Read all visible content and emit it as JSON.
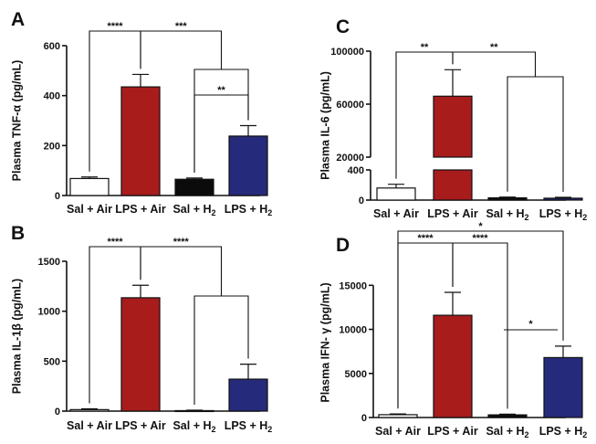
{
  "colors": {
    "Sal + Air": "#ffffff",
    "LPS + Air": "#a81c1c",
    "Sal + H2": "#0b0b0b",
    "LPS + H2": "#262a7a"
  },
  "chart_data": [
    {
      "type": "bar",
      "panel": "A",
      "ylabel": "Plasma TNF-α (pg/mL)",
      "categories": [
        "Sal + Air",
        "LPS + Air",
        "Sal + H2",
        "LPS + H2"
      ],
      "values": [
        68,
        435,
        65,
        238
      ],
      "errors": [
        6,
        50,
        5,
        42
      ],
      "ylim": [
        0,
        600
      ],
      "yticks": [
        "0",
        "200",
        "400",
        "600"
      ],
      "significance": [
        {
          "label": "****",
          "from": "Sal + Air",
          "to": "LPS + Air"
        },
        {
          "label": "***",
          "from": "LPS + Air",
          "to": "Sal + H2 / LPS + H2"
        },
        {
          "label": "**",
          "from": "Sal + H2",
          "to": "LPS + H2"
        }
      ]
    },
    {
      "type": "bar",
      "panel": "B",
      "ylabel": "Plasma IL-1β (pg/mL)",
      "categories": [
        "Sal + Air",
        "LPS + Air",
        "Sal + H2",
        "LPS + H2"
      ],
      "values": [
        15,
        1135,
        5,
        320
      ],
      "errors": [
        8,
        125,
        4,
        150
      ],
      "ylim": [
        0,
        1500
      ],
      "yticks": [
        "0",
        "500",
        "1000",
        "1500"
      ],
      "significance": [
        {
          "label": "****",
          "from": "Sal + Air",
          "to": "LPS + Air"
        },
        {
          "label": "****",
          "from": "LPS + Air",
          "to": "Sal + H2 / LPS + H2"
        }
      ]
    },
    {
      "type": "bar",
      "panel": "C",
      "ylabel": "Plasma IL-6 (pg/mL)",
      "categories": [
        "Sal + Air",
        "LPS + Air",
        "Sal + H2",
        "LPS + H2"
      ],
      "values": [
        160,
        66000,
        30,
        25
      ],
      "errors": [
        50,
        20000,
        10,
        12
      ],
      "broken_axis": true,
      "ylim_lower": [
        0,
        400
      ],
      "ylim_upper": [
        20000,
        100000
      ],
      "yticks": [
        "0",
        "400",
        "20000",
        "60000",
        "100000"
      ],
      "significance": [
        {
          "label": "**",
          "from": "Sal + Air",
          "to": "LPS + Air"
        },
        {
          "label": "**",
          "from": "LPS + Air",
          "to": "Sal + H2 / LPS + H2"
        }
      ]
    },
    {
      "type": "bar",
      "panel": "D",
      "ylabel": "Plasma IFN- γ (pg/mL)",
      "categories": [
        "Sal + Air",
        "LPS + Air",
        "Sal + H2",
        "LPS + H2"
      ],
      "values": [
        320,
        11600,
        300,
        6800
      ],
      "errors": [
        80,
        2600,
        80,
        1300
      ],
      "ylim": [
        0,
        17000
      ],
      "yticks": [
        "0",
        "5000",
        "10000",
        "15000"
      ],
      "significance": [
        {
          "label": "****",
          "from": "Sal + Air",
          "to": "LPS + Air"
        },
        {
          "label": "****",
          "from": "LPS + Air",
          "to": "Sal + H2"
        },
        {
          "label": "*",
          "from": "Sal + Air",
          "to": "LPS + H2"
        },
        {
          "label": "*",
          "from": "Sal + H2",
          "to": "LPS + H2"
        }
      ]
    }
  ]
}
